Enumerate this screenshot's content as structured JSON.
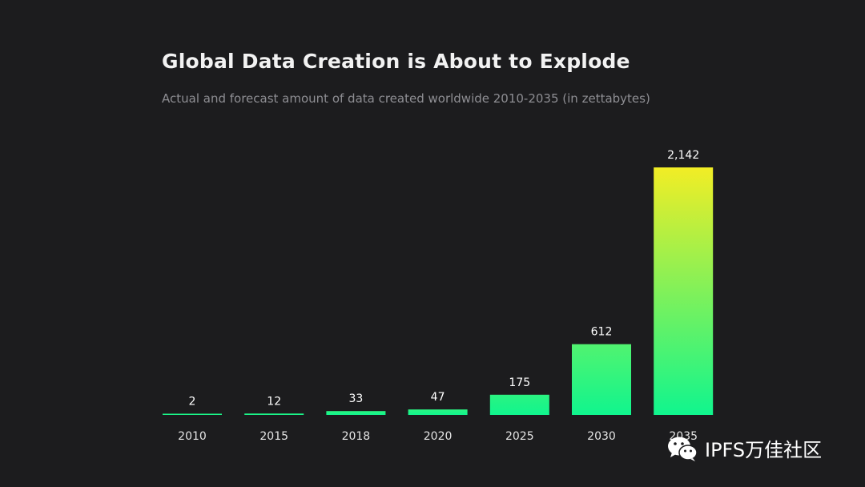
{
  "chart_data": {
    "type": "bar",
    "title": "Global Data Creation is About to Explode",
    "subtitle": "Actual and forecast amount of data created worldwide 2010-2035 (in zettabytes)",
    "categories": [
      "2010",
      "2015",
      "2018",
      "2020",
      "2025",
      "2030",
      "2035"
    ],
    "values": [
      2,
      12,
      33,
      47,
      175,
      612,
      2142
    ],
    "value_labels": [
      "2",
      "12",
      "33",
      "47",
      "175",
      "612",
      "2,142"
    ],
    "xlabel": "",
    "ylabel": "",
    "ylim": [
      0,
      2142
    ],
    "grid": false,
    "legend": "none",
    "colors": {
      "background": "#1c1c1e",
      "bar_bottom": "#10f58e",
      "bar_top": "#f2ed25",
      "label": "#ffffff",
      "tick": "#e5e5e5",
      "subtitle": "#8e8e93"
    }
  },
  "watermark": {
    "icon": "wechat-icon",
    "text": "IPFS万佳社区"
  }
}
